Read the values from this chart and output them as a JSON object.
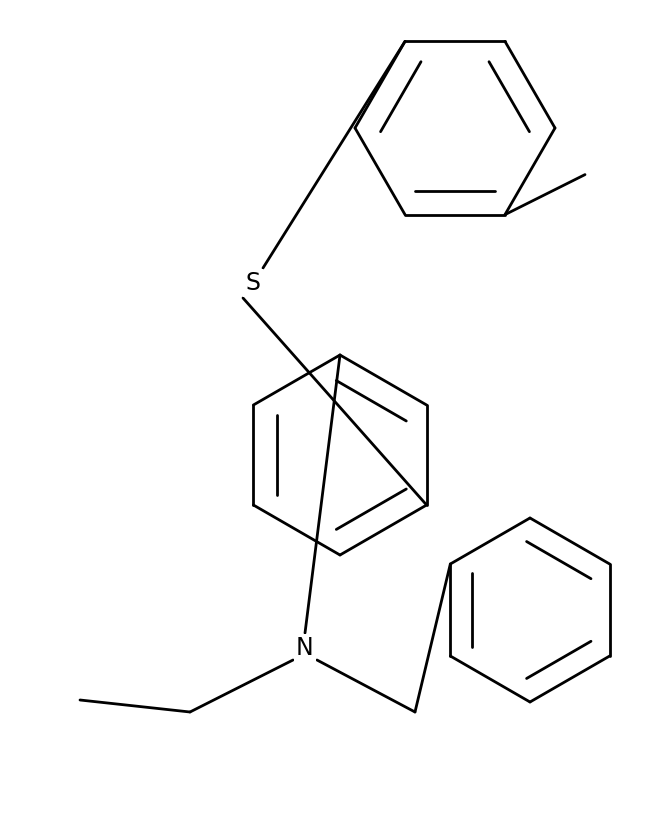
{
  "background_color": "#ffffff",
  "line_color": "#000000",
  "line_width": 2.0,
  "font_size_atom": 17,
  "figsize": [
    6.7,
    8.34
  ],
  "dpi": 100
}
